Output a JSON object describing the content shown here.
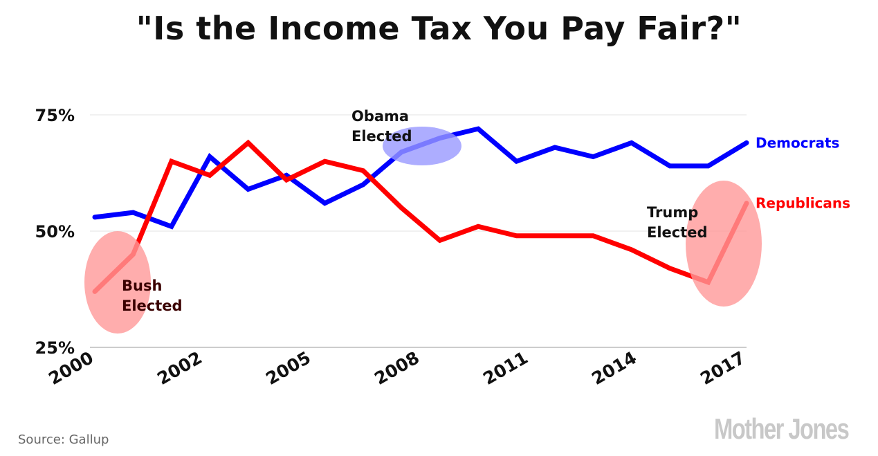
{
  "chart_data": {
    "type": "line",
    "title": "\"Is the Income Tax You Pay Fair?\"",
    "xlabel": "",
    "ylabel": "",
    "x": [
      2000,
      2001,
      2002,
      2003,
      2004,
      2005,
      2006,
      2007,
      2008,
      2009,
      2010,
      2011,
      2012,
      2013,
      2014,
      2015,
      2016,
      2017
    ],
    "x_tick_labels": [
      "2000",
      "2002",
      "2005",
      "2008",
      "2011",
      "2014",
      "2017"
    ],
    "y_ticks": [
      25,
      50,
      75
    ],
    "y_tick_labels": [
      "25%",
      "50%",
      "75%"
    ],
    "ylim": [
      25,
      75
    ],
    "grid": "horizontal",
    "legend": "right (inline labels at line ends)",
    "series": [
      {
        "name": "Democrats",
        "color": "#0000ff",
        "values": [
          53,
          54,
          51,
          66,
          59,
          62,
          56,
          60,
          67,
          70,
          72,
          65,
          68,
          66,
          69,
          64,
          64,
          69
        ]
      },
      {
        "name": "Republicans",
        "color": "#ff0000",
        "values": [
          37,
          45,
          65,
          62,
          69,
          61,
          65,
          63,
          55,
          48,
          51,
          49,
          49,
          49,
          46,
          42,
          39,
          56
        ]
      }
    ],
    "annotations": [
      {
        "text_line1": "Bush",
        "text_line2": "Elected",
        "color": "#ff9999"
      },
      {
        "text_line1": "Obama",
        "text_line2": "Elected",
        "color": "#9999ff"
      },
      {
        "text_line1": "Trump",
        "text_line2": "Elected",
        "color": "#ff9999"
      }
    ]
  },
  "source": "Source:  Gallup",
  "logo": "Mother Jones"
}
